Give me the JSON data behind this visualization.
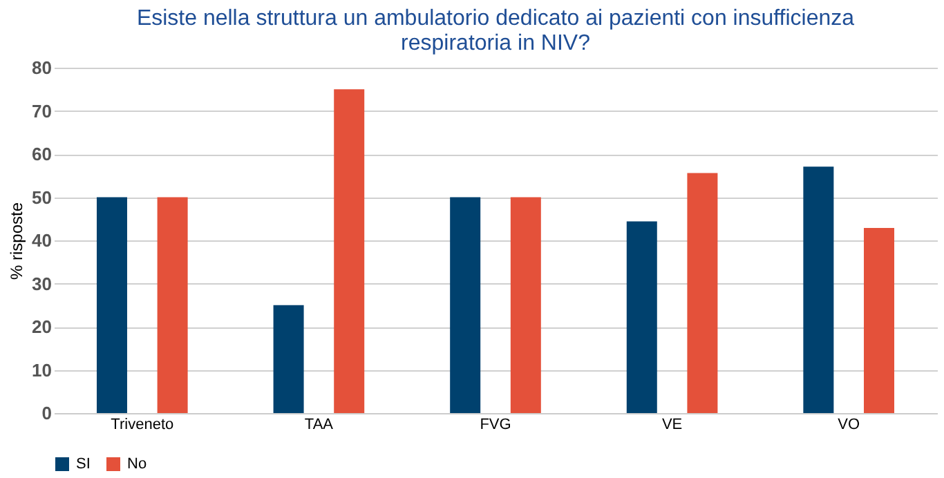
{
  "chart_data": {
    "type": "bar",
    "title": [
      "Esiste nella struttura un ambulatorio dedicato ai pazienti con insufficienza",
      "respiratoria in NIV?"
    ],
    "ylabel": "% risposte",
    "categories": [
      "Triveneto",
      "TAA",
      "FVG",
      "VE",
      "VO"
    ],
    "series": [
      {
        "name": "SI",
        "color": "#00416e",
        "values": [
          50,
          25,
          50,
          44.4,
          57.1
        ]
      },
      {
        "name": "No",
        "color": "#e4513a",
        "values": [
          50,
          75,
          50,
          55.6,
          42.9
        ]
      }
    ],
    "ylim": [
      0,
      80
    ],
    "yticks": [
      0,
      10,
      20,
      30,
      40,
      50,
      60,
      70,
      80
    ],
    "grid": "y",
    "legend": "bottom"
  }
}
